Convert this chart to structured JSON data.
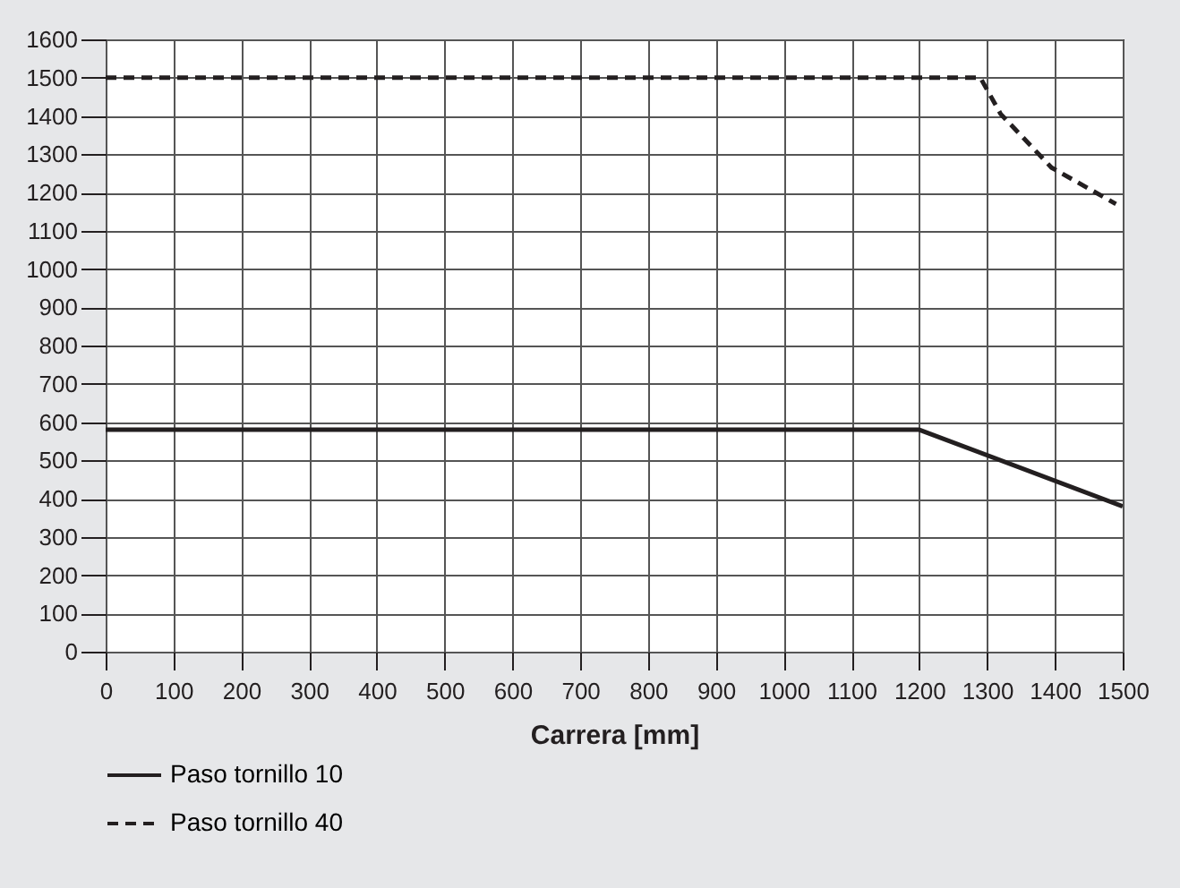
{
  "chart_data": {
    "type": "line",
    "xlabel": "Carrera [mm]",
    "xlim": [
      0,
      1500
    ],
    "xticks": [
      0,
      100,
      200,
      300,
      400,
      500,
      600,
      700,
      800,
      900,
      1000,
      1100,
      1200,
      1300,
      1400,
      1500
    ],
    "ylim": [
      0,
      1600
    ],
    "yticks": [
      0,
      100,
      200,
      300,
      400,
      500,
      600,
      700,
      800,
      900,
      1000,
      1100,
      1200,
      1300,
      1400,
      1500,
      1600
    ],
    "grid": true,
    "legend": "bottom left",
    "series": [
      {
        "name": "Paso tornillo 10",
        "color": "#231f20",
        "line_style": "solid",
        "x": [
          0,
          1200,
          1500
        ],
        "values": [
          580,
          580,
          380
        ]
      },
      {
        "name": "Paso tornillo 40",
        "color": "#231f20",
        "line_style": "dashed",
        "x": [
          0,
          1290,
          1320,
          1395,
          1490
        ],
        "values": [
          1500,
          1500,
          1405,
          1265,
          1170
        ]
      }
    ]
  }
}
